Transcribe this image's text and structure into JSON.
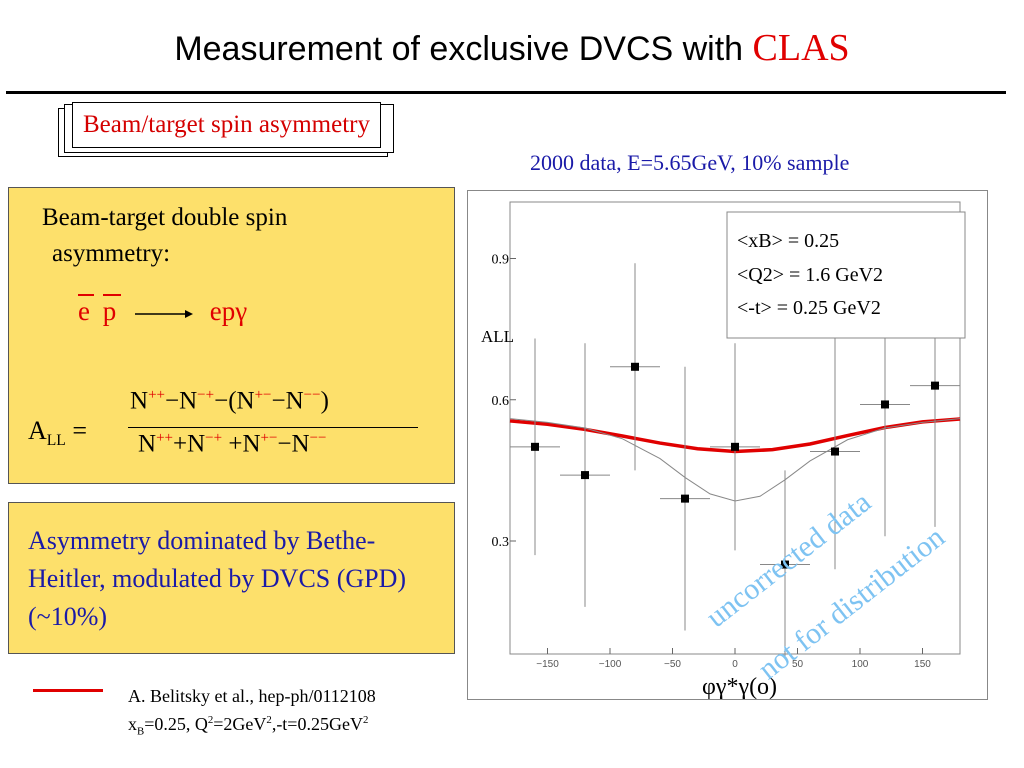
{
  "slide": {
    "title": "Measurement of exclusive DVCS with",
    "title_accent": "CLAS",
    "tag": "Beam/target spin asymmetry",
    "data_caption": "2000 data, E=5.65GeV, 10% sample",
    "beam_target_line1": "Beam-target double  spin",
    "beam_target_line2": "asymmetry:",
    "reaction_lhs_e": "e",
    "reaction_lhs_p": "p",
    "reaction_rhs": "epγ",
    "all_label": "A",
    "all_sub": "LL",
    "all_eq": " =",
    "formula": {
      "N": "N",
      "pp": "++",
      "mp": "−+",
      "pm": "+−",
      "mm": "−−",
      "minus": "−",
      "open": "(",
      "close": ")",
      "plus": "+",
      "plus_sp": " +"
    },
    "asymmetry_text": "Asymmetry dominated by Bethe-Heitler, modulated by DVCS (GPD) (~10%)",
    "ref_line1": "A. Belitsky et al., hep-ph/0112108",
    "ref_x": "x",
    "ref_xsub": "B",
    "ref_part2": "=0.25, Q",
    "ref_sup2a": "2",
    "ref_part3": "=2GeV",
    "ref_sup2b": "2",
    "ref_part4": ",-t=0.25GeV",
    "ref_sup2c": "2",
    "stamp_line1": "uncorrected data",
    "stamp_line2": "not for distribution",
    "colors": {
      "red": "#e00000",
      "blue": "#1a1aa8",
      "panel": "#fde06b",
      "stamp": "#7ec3f2"
    }
  },
  "chart_data": {
    "type": "scatter",
    "title": "",
    "xlabel": "φγ*γ(o)",
    "ylabel": "ALL",
    "xlim": [
      -180,
      180
    ],
    "ylim": [
      0.06,
      1.02
    ],
    "x_ticks": [
      -150,
      -100,
      -50,
      0,
      50,
      100,
      150
    ],
    "x_tick_labels": [
      "−150",
      "−100",
      "−50",
      "0",
      "50",
      "100",
      "150"
    ],
    "y_ticks": [
      0.9,
      0.6,
      0.3
    ],
    "y_tick_labels": [
      "0.9",
      "0.6",
      "0.3"
    ],
    "legend": {
      "line1": "<xB>  = 0.25",
      "line2": "<Q2>  = 1.6 GeV2",
      "line3": "<-t>  = 0.25 GeV2",
      "placement": "top-right"
    },
    "series": [
      {
        "kind": "points",
        "x": [
          -160,
          -120,
          -80,
          -40,
          0,
          40,
          80,
          120,
          160
        ],
        "y": [
          0.5,
          0.44,
          0.67,
          0.39,
          0.5,
          0.25,
          0.49,
          0.59,
          0.63
        ],
        "yerr": [
          0.23,
          0.28,
          0.22,
          0.28,
          0.22,
          0.2,
          0.25,
          0.28,
          0.3
        ],
        "xerr": [
          20,
          20,
          20,
          20,
          20,
          20,
          20,
          20,
          20
        ]
      },
      {
        "kind": "thick-curve",
        "color": "#e00000",
        "x": [
          -180,
          -150,
          -120,
          -90,
          -60,
          -30,
          0,
          30,
          60,
          90,
          120,
          150,
          180
        ],
        "y": [
          0.555,
          0.548,
          0.537,
          0.523,
          0.508,
          0.496,
          0.49,
          0.494,
          0.506,
          0.524,
          0.541,
          0.553,
          0.559
        ]
      },
      {
        "kind": "thin-curve",
        "color": "#888888",
        "x": [
          -180,
          -150,
          -120,
          -90,
          -60,
          -40,
          -20,
          0,
          20,
          40,
          60,
          90,
          120,
          150,
          180
        ],
        "y": [
          0.56,
          0.552,
          0.54,
          0.517,
          0.475,
          0.435,
          0.4,
          0.385,
          0.395,
          0.43,
          0.47,
          0.515,
          0.54,
          0.552,
          0.56
        ]
      }
    ]
  }
}
